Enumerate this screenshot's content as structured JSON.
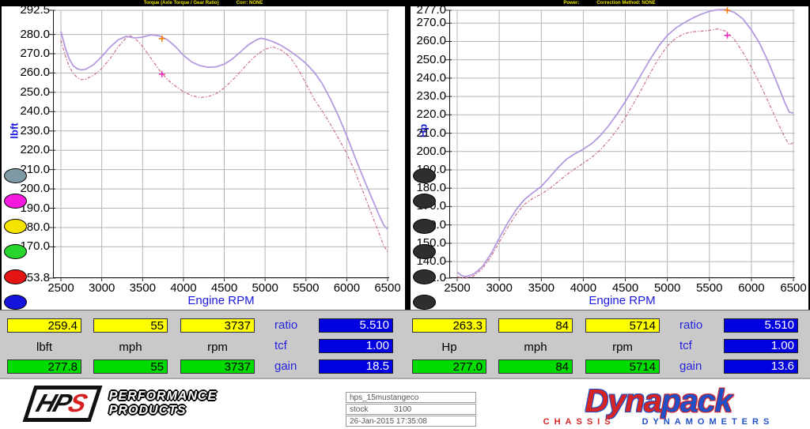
{
  "colors": {
    "grid": "#b5b5b5",
    "axis": "#111111",
    "solid_curve": "#b49ae0",
    "dashed_curve": "#cb7186",
    "marker_orange": "#f07d00",
    "marker_magenta": "#e626b4",
    "value_yellow": "#ffff00",
    "value_green": "#00dc00",
    "value_blue": "#0000e0",
    "label_blue": "#2424e0"
  },
  "chart_data": [
    {
      "type": "line",
      "title": "Torque (Axle Torque / Gear Ratio)",
      "corr_label": "Corr: NONE",
      "xlabel": "Engine RPM",
      "ylabel": "lbft",
      "xlim": [
        2500,
        6500
      ],
      "ylim": [
        153.8,
        292.5
      ],
      "grid": true,
      "x_ticks": [
        [
          2500,
          "2500"
        ],
        [
          3000,
          "3000"
        ],
        [
          3500,
          "3500"
        ],
        [
          4000,
          "4000"
        ],
        [
          4500,
          "4500"
        ],
        [
          5000,
          "5000"
        ],
        [
          5500,
          "5500"
        ],
        [
          6000,
          "6000"
        ],
        [
          6500,
          "6500"
        ]
      ],
      "y_ticks": [
        [
          292.5,
          "292.5"
        ],
        [
          280,
          "280.0"
        ],
        [
          270,
          "270.0"
        ],
        [
          260,
          "260.0"
        ],
        [
          250,
          "250.0"
        ],
        [
          240,
          "240.0"
        ],
        [
          230,
          "230.0"
        ],
        [
          220,
          "220.0"
        ],
        [
          210,
          "210.0"
        ],
        [
          200,
          "200.0"
        ],
        [
          190,
          "190.0"
        ],
        [
          180,
          "180.0"
        ],
        [
          170,
          "170.0"
        ],
        [
          153.8,
          "153.8"
        ]
      ],
      "swatches": [
        "#7d99a3",
        "#f519e0",
        "#f5e400",
        "#28d52c",
        "#e51414",
        "#1414dd"
      ],
      "series": [
        {
          "name": "torque-dashed-run",
          "color": "#cb7186",
          "width": 1.2,
          "dash": "4 2 1.5 2",
          "points": [
            [
              2500,
              277.0
            ],
            [
              2550,
              269.5
            ],
            [
              2600,
              263.5
            ],
            [
              2650,
              259.8
            ],
            [
              2700,
              257.6
            ],
            [
              2750,
              256.6
            ],
            [
              2800,
              256.8
            ],
            [
              2900,
              258.8
            ],
            [
              3000,
              262.3
            ],
            [
              3100,
              267.3
            ],
            [
              3200,
              273.5
            ],
            [
              3300,
              278.3
            ],
            [
              3350,
              279.2
            ],
            [
              3400,
              278.3
            ],
            [
              3500,
              273.8
            ],
            [
              3600,
              267.8
            ],
            [
              3700,
              261.8
            ],
            [
              3800,
              256.8
            ],
            [
              3900,
              253.3
            ],
            [
              4000,
              250.3
            ],
            [
              4100,
              248.3
            ],
            [
              4200,
              247.3
            ],
            [
              4300,
              247.7
            ],
            [
              4400,
              249.3
            ],
            [
              4500,
              252.3
            ],
            [
              4600,
              256.3
            ],
            [
              4700,
              260.8
            ],
            [
              4800,
              265.5
            ],
            [
              4900,
              269.5
            ],
            [
              5000,
              272.3
            ],
            [
              5100,
              273.5
            ],
            [
              5200,
              271.8
            ],
            [
              5300,
              268.5
            ],
            [
              5400,
              262.5
            ],
            [
              5500,
              254.5
            ],
            [
              5600,
              246.5
            ],
            [
              5700,
              240.3
            ],
            [
              5800,
              233.5
            ],
            [
              5900,
              226.0
            ],
            [
              6000,
              218.3
            ],
            [
              6100,
              209.0
            ],
            [
              6200,
              198.5
            ],
            [
              6300,
              187.5
            ],
            [
              6400,
              176.5
            ],
            [
              6450,
              170.8
            ],
            [
              6500,
              167.5
            ]
          ]
        },
        {
          "name": "torque-solid-run",
          "color": "#b49ae0",
          "width": 1.8,
          "dash": "",
          "points": [
            [
              2500,
              281.5
            ],
            [
              2550,
              273.5
            ],
            [
              2600,
              267.5
            ],
            [
              2650,
              263.8
            ],
            [
              2700,
              262.2
            ],
            [
              2750,
              261.6
            ],
            [
              2800,
              261.9
            ],
            [
              2900,
              264.3
            ],
            [
              3000,
              268.5
            ],
            [
              3100,
              273.3
            ],
            [
              3200,
              277.2
            ],
            [
              3300,
              279.0
            ],
            [
              3400,
              278.2
            ],
            [
              3500,
              278.6
            ],
            [
              3600,
              279.8
            ],
            [
              3700,
              279.3
            ],
            [
              3800,
              277.4
            ],
            [
              3900,
              273.8
            ],
            [
              4000,
              269.2
            ],
            [
              4100,
              265.8
            ],
            [
              4200,
              263.8
            ],
            [
              4300,
              263.0
            ],
            [
              4400,
              263.2
            ],
            [
              4500,
              264.6
            ],
            [
              4600,
              267.3
            ],
            [
              4700,
              271.0
            ],
            [
              4800,
              274.8
            ],
            [
              4900,
              277.3
            ],
            [
              4950,
              278.0
            ],
            [
              5000,
              277.6
            ],
            [
              5100,
              276.2
            ],
            [
              5200,
              274.2
            ],
            [
              5300,
              271.5
            ],
            [
              5400,
              268.5
            ],
            [
              5500,
              265.0
            ],
            [
              5600,
              260.5
            ],
            [
              5700,
              254.5
            ],
            [
              5800,
              246.5
            ],
            [
              5900,
              237.5
            ],
            [
              6000,
              227.5
            ],
            [
              6100,
              216.5
            ],
            [
              6200,
              206.0
            ],
            [
              6300,
              196.0
            ],
            [
              6400,
              186.0
            ],
            [
              6450,
              181.5
            ],
            [
              6500,
              179.0
            ]
          ]
        }
      ],
      "markers": [
        {
          "x": 3737,
          "y": 277.8,
          "color": "#f07d00"
        },
        {
          "x": 3737,
          "y": 259.4,
          "color": "#e626b4"
        }
      ]
    },
    {
      "type": "line",
      "title": "Power:",
      "corr_label": "Correction Method: NONE",
      "xlabel": "Engine RPM",
      "ylabel": "Hp",
      "xlim": [
        2500,
        6500
      ],
      "ylim": [
        131,
        277
      ],
      "grid": true,
      "x_ticks": [
        [
          2500,
          "2500"
        ],
        [
          3000,
          "3000"
        ],
        [
          3500,
          "3500"
        ],
        [
          4000,
          "4000"
        ],
        [
          4500,
          "4500"
        ],
        [
          5000,
          "5000"
        ],
        [
          5500,
          "5500"
        ],
        [
          6000,
          "6000"
        ],
        [
          6500,
          "6500"
        ]
      ],
      "y_ticks": [
        [
          277,
          "277.0"
        ],
        [
          270,
          "270.0"
        ],
        [
          260,
          "260.0"
        ],
        [
          250,
          "250.0"
        ],
        [
          240,
          "240.0"
        ],
        [
          230,
          "230.0"
        ],
        [
          220,
          "220.0"
        ],
        [
          210,
          "210.0"
        ],
        [
          200,
          "200.0"
        ],
        [
          190,
          "190.0"
        ],
        [
          180,
          "180.0"
        ],
        [
          170,
          "170.0"
        ],
        [
          160,
          "160.0"
        ],
        [
          150,
          "150.0"
        ],
        [
          140,
          "140.0"
        ],
        [
          131,
          "131.0"
        ]
      ],
      "swatches": [
        "#2e2e2e",
        "#2e2e2e",
        "#2e2e2e",
        "#2e2e2e",
        "#2e2e2e",
        "#2e2e2e"
      ],
      "series": [
        {
          "name": "power-dashed-run",
          "color": "#cb7186",
          "width": 1.2,
          "dash": "4 2 1.5 2",
          "points": [
            [
              2500,
              131.6
            ],
            [
              2600,
              130.9
            ],
            [
              2700,
              132.3
            ],
            [
              2800,
              136.2
            ],
            [
              2900,
              142.5
            ],
            [
              3000,
              150.5
            ],
            [
              3100,
              158.5
            ],
            [
              3200,
              165.7
            ],
            [
              3300,
              171.2
            ],
            [
              3400,
              174.5
            ],
            [
              3500,
              176.8
            ],
            [
              3600,
              179.8
            ],
            [
              3700,
              183.5
            ],
            [
              3800,
              187.3
            ],
            [
              3900,
              190.6
            ],
            [
              4000,
              193.6
            ],
            [
              4100,
              196.8
            ],
            [
              4200,
              200.8
            ],
            [
              4300,
              205.8
            ],
            [
              4400,
              211.8
            ],
            [
              4500,
              218.5
            ],
            [
              4600,
              226.2
            ],
            [
              4700,
              234.5
            ],
            [
              4800,
              243.0
            ],
            [
              4900,
              251.0
            ],
            [
              5000,
              257.5
            ],
            [
              5100,
              261.8
            ],
            [
              5200,
              264.2
            ],
            [
              5300,
              265.3
            ],
            [
              5400,
              265.6
            ],
            [
              5500,
              266.0
            ],
            [
              5600,
              266.9
            ],
            [
              5700,
              265.6
            ],
            [
              5800,
              261.0
            ],
            [
              5900,
              254.0
            ],
            [
              6000,
              246.0
            ],
            [
              6100,
              237.0
            ],
            [
              6200,
              227.3
            ],
            [
              6300,
              217.0
            ],
            [
              6400,
              207.5
            ],
            [
              6450,
              203.8
            ],
            [
              6500,
              204.8
            ]
          ]
        },
        {
          "name": "power-solid-run",
          "color": "#b49ae0",
          "width": 1.8,
          "dash": "",
          "points": [
            [
              2500,
              134.2
            ],
            [
              2550,
              132.4
            ],
            [
              2600,
              131.7
            ],
            [
              2700,
              133.3
            ],
            [
              2800,
              137.3
            ],
            [
              2900,
              144.0
            ],
            [
              3000,
              152.8
            ],
            [
              3100,
              161.0
            ],
            [
              3200,
              168.2
            ],
            [
              3300,
              173.8
            ],
            [
              3400,
              177.5
            ],
            [
              3500,
              181.0
            ],
            [
              3600,
              186.0
            ],
            [
              3700,
              191.3
            ],
            [
              3800,
              195.8
            ],
            [
              3900,
              198.8
            ],
            [
              4000,
              201.3
            ],
            [
              4100,
              204.3
            ],
            [
              4200,
              208.5
            ],
            [
              4300,
              214.0
            ],
            [
              4400,
              220.3
            ],
            [
              4500,
              227.2
            ],
            [
              4600,
              234.8
            ],
            [
              4700,
              242.8
            ],
            [
              4800,
              250.6
            ],
            [
              4900,
              257.6
            ],
            [
              5000,
              263.3
            ],
            [
              5100,
              267.3
            ],
            [
              5200,
              270.2
            ],
            [
              5300,
              272.7
            ],
            [
              5400,
              274.8
            ],
            [
              5500,
              276.4
            ],
            [
              5600,
              277.3
            ],
            [
              5700,
              277.4
            ],
            [
              5800,
              275.8
            ],
            [
              5900,
              272.2
            ],
            [
              6000,
              266.3
            ],
            [
              6100,
              258.8
            ],
            [
              6200,
              249.0
            ],
            [
              6300,
              238.0
            ],
            [
              6400,
              226.5
            ],
            [
              6450,
              221.5
            ],
            [
              6500,
              220.9
            ]
          ]
        }
      ],
      "markers": [
        {
          "x": 5714,
          "y": 277.0,
          "color": "#f07d00"
        },
        {
          "x": 5714,
          "y": 263.3,
          "color": "#e626b4"
        }
      ]
    }
  ],
  "tables": {
    "left": {
      "top_values": [
        "259.4",
        "55",
        "3737"
      ],
      "units": [
        "lbft",
        "mph",
        "rpm"
      ],
      "bottom_values": [
        "277.8",
        "55",
        "3737"
      ],
      "stats": [
        {
          "label": "ratio",
          "value": "5.510"
        },
        {
          "label": "tcf",
          "value": "1.00"
        },
        {
          "label": "gain",
          "value": "18.5"
        }
      ]
    },
    "right": {
      "top_values": [
        "263.3",
        "84",
        "5714"
      ],
      "units": [
        "Hp",
        "mph",
        "rpm"
      ],
      "bottom_values": [
        "277.0",
        "84",
        "5714"
      ],
      "stats": [
        {
          "label": "ratio",
          "value": "5.510"
        },
        {
          "label": "tcf",
          "value": "1.00"
        },
        {
          "label": "gain",
          "value": "13.6"
        }
      ]
    }
  },
  "footer": {
    "hps": {
      "hp": "HP",
      "s": "S",
      "line1": "PERFORMANCE",
      "line2": "PRODUCTS"
    },
    "info": {
      "run_name": "hps_15mustangeco",
      "config_label": "stock",
      "config_value": "3100",
      "timestamp": "26-Jan-2015  17:35:08"
    },
    "dynapack": {
      "part1": "Dyna",
      "part2": "pack",
      "sub1": "CHASSIS",
      "sub2": "DYNAMOMETERS"
    }
  }
}
